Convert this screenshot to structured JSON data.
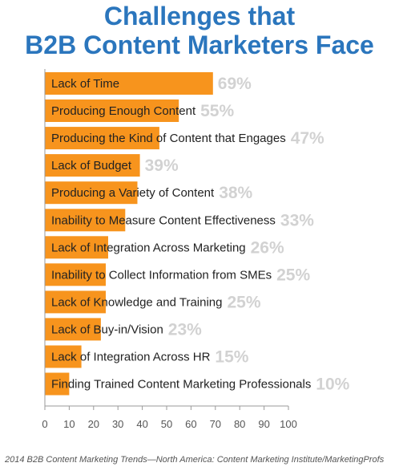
{
  "chart_data": {
    "type": "bar",
    "orientation": "horizontal",
    "title_lines": [
      "Challenges that",
      "B2B Content Marketers Face"
    ],
    "categories": [
      "Lack of Time",
      "Producing Enough Content",
      "Producing the Kind of Content that Engages",
      "Lack of Budget",
      "Producing a Variety of Content",
      "Inability to Measure Content Effectiveness",
      "Lack of Integration Across Marketing",
      "Inability to Collect Information from SMEs",
      "Lack of Knowledge and Training",
      "Lack of Buy-in/Vision",
      "Lack of Integration Across HR",
      "Finding Trained Content Marketing Professionals"
    ],
    "values": [
      69,
      55,
      47,
      39,
      38,
      33,
      26,
      25,
      25,
      23,
      15,
      10
    ],
    "value_labels": [
      "69%",
      "55%",
      "47%",
      "39%",
      "38%",
      "33%",
      "26%",
      "25%",
      "25%",
      "23%",
      "15%",
      "10%"
    ],
    "xlim": [
      0,
      100
    ],
    "xticks": [
      0,
      10,
      20,
      30,
      40,
      50,
      60,
      70,
      80,
      90,
      100
    ],
    "xlabel": "",
    "ylabel": "",
    "grid": false,
    "legend": "none",
    "bar_color": "#f7941d",
    "value_label_color": "#d2d2d2",
    "source": "2014 B2B Content Marketing Trends—North America: Content Marketing Institute/MarketingProfs"
  }
}
